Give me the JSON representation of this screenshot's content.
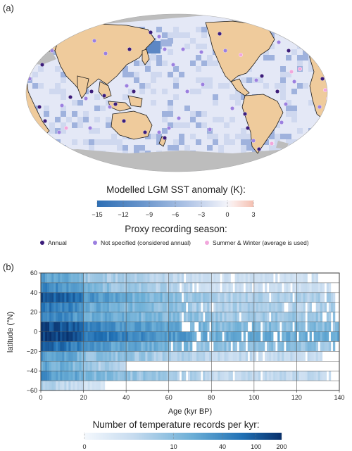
{
  "panel_a": {
    "label": "(a)",
    "colorbar": {
      "title": "Modelled LGM SST anomaly (K):",
      "ticks": [
        "−15",
        "−12",
        "−9",
        "−6",
        "−3",
        "0",
        "3"
      ],
      "tick_values": [
        -15,
        -12,
        -9,
        -6,
        -3,
        0,
        3
      ],
      "colors": [
        "#2e6fb5",
        "#5589c5",
        "#7fa3d3",
        "#a8bee2",
        "#cfdaf0",
        "#fbeae5",
        "#f4c2b4"
      ]
    },
    "legend": {
      "title": "Proxy recording season:",
      "items": [
        {
          "label": "Annual",
          "color": "#3b1c7a"
        },
        {
          "label": "Not specified (considered annual)",
          "color": "#9b7fe0"
        },
        {
          "label": "Summer & Winter (average is used)",
          "color": "#f2a7dc"
        }
      ]
    },
    "map_colors": {
      "land": "#efcb9c",
      "ice": "#bdbdbd",
      "ocean_base": "#e4e8f6",
      "ocean_cold": "#9fb2dd",
      "ocean_coldest": "#5d87c4"
    }
  },
  "panel_b": {
    "label": "(b)",
    "chart_data": {
      "type": "heatmap",
      "xlabel": "Age (kyr BP)",
      "ylabel": "latitude (°N)",
      "xlim": [
        0,
        140
      ],
      "ylim": [
        -60,
        60
      ],
      "x_ticks": [
        0,
        20,
        40,
        60,
        80,
        100,
        120,
        140
      ],
      "y_ticks": [
        60,
        40,
        20,
        0,
        -20,
        -40,
        -60
      ],
      "x_tick_labels": [
        "0",
        "20",
        "40",
        "60",
        "80",
        "100",
        "120",
        "140"
      ],
      "y_tick_labels": [
        "60",
        "40",
        "20",
        "0",
        "−20",
        "−40",
        "−60"
      ],
      "lat_bands": [
        {
          "lat_min": 50,
          "lat_max": 60,
          "near": 25,
          "mid": 6,
          "far": 3,
          "end": 130
        },
        {
          "lat_min": 40,
          "lat_max": 50,
          "near": 45,
          "mid": 8,
          "far": 3,
          "end": 136
        },
        {
          "lat_min": 30,
          "lat_max": 40,
          "near": 120,
          "mid": 18,
          "far": 6,
          "end": 138
        },
        {
          "lat_min": 20,
          "lat_max": 30,
          "near": 70,
          "mid": 14,
          "far": 6,
          "end": 138
        },
        {
          "lat_min": 10,
          "lat_max": 20,
          "near": 55,
          "mid": 16,
          "far": 8,
          "end": 138
        },
        {
          "lat_min": 0,
          "lat_max": 10,
          "near": 150,
          "mid": 30,
          "far": 12,
          "end": 140
        },
        {
          "lat_min": -10,
          "lat_max": 0,
          "near": 200,
          "mid": 45,
          "far": 18,
          "end": 140
        },
        {
          "lat_min": -20,
          "lat_max": -10,
          "near": 90,
          "mid": 22,
          "far": 10,
          "end": 138
        },
        {
          "lat_min": -30,
          "lat_max": -20,
          "near": 30,
          "mid": 9,
          "far": 4,
          "end": 132
        },
        {
          "lat_min": -40,
          "lat_max": -30,
          "near": 22,
          "mid": 5,
          "far": 2,
          "end": 40
        },
        {
          "lat_min": -50,
          "lat_max": -40,
          "near": 35,
          "mid": 10,
          "far": 4,
          "end": 136
        },
        {
          "lat_min": -60,
          "lat_max": -50,
          "near": 6,
          "mid": 2,
          "far": 1,
          "end": 30
        }
      ]
    },
    "colorbar": {
      "title": "Number of temperature records per kyr:",
      "tick_labels": [
        "0",
        "10",
        "40",
        "100",
        "200"
      ],
      "tick_values": [
        0,
        10,
        40,
        100,
        200
      ]
    }
  }
}
